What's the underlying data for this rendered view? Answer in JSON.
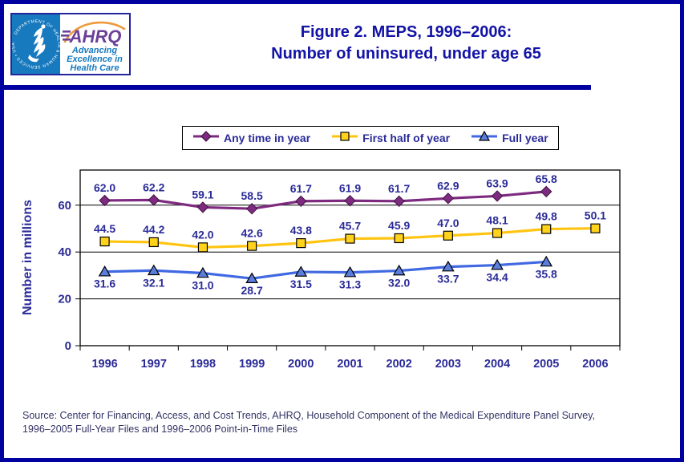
{
  "header": {
    "title_line1": "Figure 2. MEPS, 1996–2006:",
    "title_line2": "Number of uninsured, under age 65"
  },
  "logo": {
    "seal_text": "DEPARTMENT OF HEALTH & HUMAN SERVICES • USA",
    "acronym": "AHRQ",
    "tagline_line1": "Advancing",
    "tagline_line2": "Excellence in",
    "tagline_line3": "Health Care"
  },
  "chart_data": {
    "type": "line",
    "title": "Figure 2. MEPS, 1996–2006: Number of uninsured, under age 65",
    "categories": [
      "1996",
      "1997",
      "1998",
      "1999",
      "2000",
      "2001",
      "2002",
      "2003",
      "2004",
      "2005",
      "2006"
    ],
    "series": [
      {
        "name": "Any time in year",
        "marker": "diamond",
        "color": "#7E2A80",
        "marker_fill": "#7E2A80",
        "label_position": "above",
        "values": [
          62.0,
          62.2,
          59.1,
          58.5,
          61.7,
          61.9,
          61.7,
          62.9,
          63.9,
          65.8
        ]
      },
      {
        "name": "First half of year",
        "marker": "square",
        "color": "#FFC410",
        "marker_fill": "#FFD21C",
        "label_position": "above",
        "values": [
          44.5,
          44.2,
          42.0,
          42.6,
          43.8,
          45.7,
          45.9,
          47.0,
          48.1,
          49.8,
          50.1
        ]
      },
      {
        "name": "Full year",
        "marker": "triangle",
        "color": "#4169E1",
        "marker_fill": "#5B7EDC",
        "label_position": "below",
        "values": [
          31.6,
          32.1,
          31.0,
          28.7,
          31.5,
          31.3,
          32.0,
          33.7,
          34.4,
          35.8
        ]
      }
    ],
    "xlabel": "",
    "ylabel": "Number in millions",
    "yticks": [
      0,
      20,
      40,
      60
    ],
    "ylim": [
      0,
      75
    ],
    "grid": true,
    "legend_position": "top",
    "value_labels": true,
    "value_label_decimals": 1
  },
  "footer": {
    "source_line1": "Source: Center for Financing, Access, and Cost Trends, AHRQ, Household Component of the Medical Expenditure Panel Survey,",
    "source_line2": "1996–2005 Full-Year Files and 1996–2006 Point-in-Time Files"
  },
  "colors": {
    "accent_border": "#0000A0",
    "title_text": "#1313A7",
    "axis_label_text": "#2B2B99",
    "data_label_text": "#2B2B99",
    "source_text": "#333366",
    "plot_border": "#000000",
    "logo_blue": "#1779BE",
    "logo_purple": "#6B4097",
    "logo_swoosh_orange": "#EE9A3C"
  }
}
